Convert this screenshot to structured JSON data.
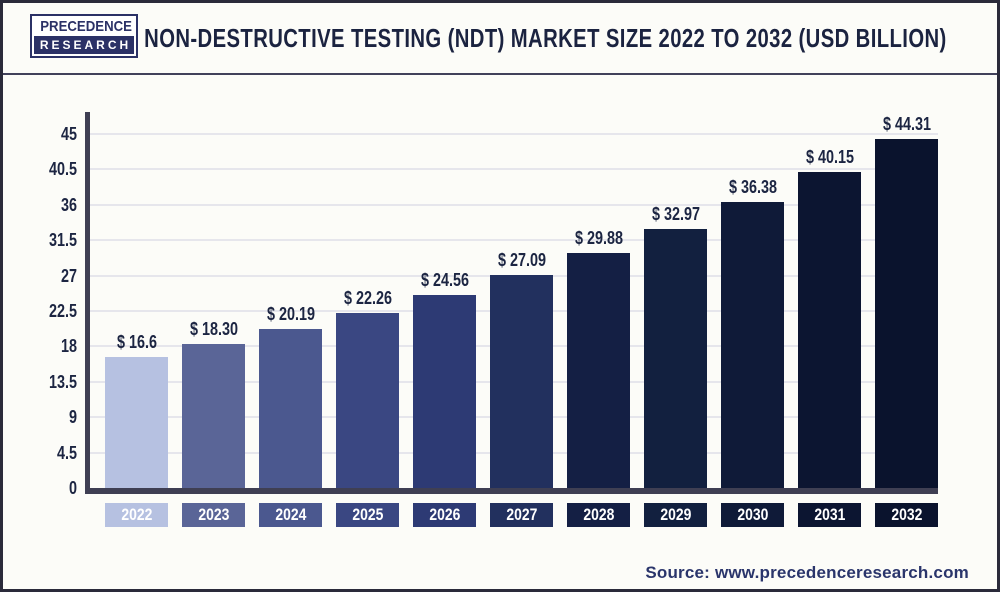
{
  "header": {
    "logo": {
      "line1": "PRECEDENCE",
      "line2": "RESEARCH"
    },
    "title": "NON-DESTRUCTIVE TESTING (NDT) MARKET SIZE 2022 TO 2032 (USD BILLION)"
  },
  "chart_data": {
    "type": "bar",
    "title": "Non-Destructive Testing (NDT) Market Size 2022 to 2032 (USD Billion)",
    "unit": "USD Billion",
    "categories": [
      "2022",
      "2023",
      "2024",
      "2025",
      "2026",
      "2027",
      "2028",
      "2029",
      "2030",
      "2031",
      "2032"
    ],
    "values": [
      16.6,
      18.3,
      20.19,
      22.26,
      24.56,
      27.09,
      29.88,
      32.97,
      36.38,
      40.15,
      44.31
    ],
    "value_labels": [
      "$ 16.6",
      "$ 18.30",
      "$ 20.19",
      "$ 22.26",
      "$ 24.56",
      "$ 27.09",
      "$ 29.88",
      "$ 32.97",
      "$ 36.38",
      "$ 40.15",
      "$ 44.31"
    ],
    "y_ticks": [
      0,
      4.5,
      9,
      13.5,
      18,
      22.5,
      27,
      31.5,
      36,
      40.5,
      45
    ],
    "ylim": [
      0,
      45
    ],
    "grid": "horizontal",
    "legend": "none",
    "bar_colors": [
      "#b6c1e1",
      "#5a6597",
      "#4b588f",
      "#3a4782",
      "#2d3a74",
      "#22305e",
      "#141f44",
      "#12203f",
      "#0f1a38",
      "#0c1531",
      "#0a132d"
    ]
  },
  "footer": {
    "source": "Source: www.precedenceresearch.com"
  },
  "colors": {
    "accent_navy": "#2b3166",
    "title_text": "#1b2340",
    "tick_text": "#1c2542",
    "axis": "#3f3f53",
    "gridline": "#e6e6ec",
    "source_text": "#2a356b",
    "page_background": "#fcfcf8",
    "page_border": "#2a2a3a"
  }
}
